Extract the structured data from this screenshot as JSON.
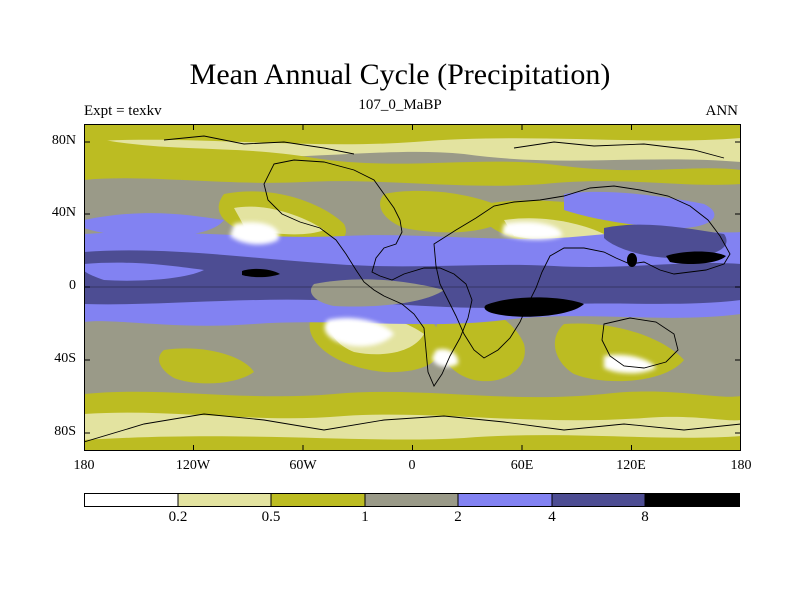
{
  "title": "Mean Annual Cycle (Precipitation)",
  "subtitle_left": "Expt = texkv",
  "subtitle_center": "107_0_MaBP",
  "subtitle_right": "ANN",
  "lat_labels": [
    "80N",
    "40N",
    "0",
    "40S",
    "80S"
  ],
  "lon_labels": [
    "180",
    "120W",
    "60W",
    "0",
    "60E",
    "120E",
    "180"
  ],
  "legend": {
    "boundaries": [
      "0.2",
      "0.5",
      "1",
      "2",
      "4",
      "8"
    ],
    "colors": [
      "#ffffff",
      "#e3e3a0",
      "#bcbc22",
      "#9a9a88",
      "#8282f2",
      "#4d4d93",
      "#000000"
    ]
  }
}
